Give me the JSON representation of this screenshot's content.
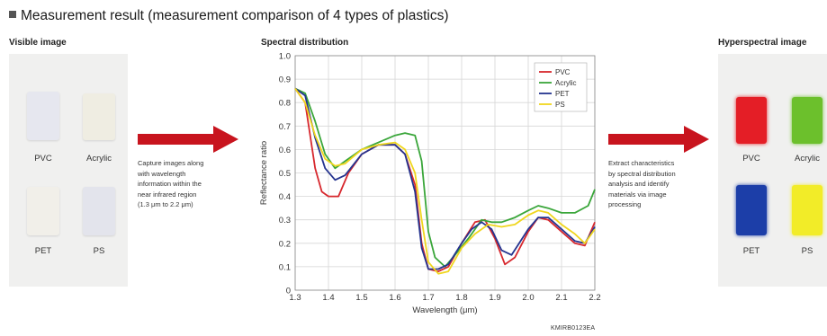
{
  "header": {
    "title": "Measurement result (measurement comparison of 4 types of plastics)"
  },
  "sections": {
    "visible": "Visible image",
    "spectral": "Spectral distribution",
    "hyperspectral": "Hyperspectral image"
  },
  "left_panel": {
    "labels": [
      "PVC",
      "Acrylic",
      "PET",
      "PS"
    ]
  },
  "right_panel": {
    "labels": [
      "PVC",
      "Acrylic",
      "PET",
      "PS"
    ],
    "colors": [
      "#e41e26",
      "#6cc02c",
      "#1c3ea8",
      "#f2ec28"
    ]
  },
  "steps": {
    "capture": [
      "Capture images along",
      "with wavelength",
      "information within the",
      "near infrared region",
      "(1.3 μm to 2.2 μm)"
    ],
    "extract": [
      "Extract characteristics",
      "by spectral distribution",
      "analysis and identify",
      "materials via image",
      "processing"
    ]
  },
  "figure_code": "KMIRB0123EA",
  "arrow_color": "#c8141e",
  "chart_data": {
    "type": "line",
    "title": "",
    "xlabel": "Wavelength (μm)",
    "ylabel": "Reflectance ratio",
    "xlim": [
      1.3,
      2.2
    ],
    "ylim": [
      0,
      1.0
    ],
    "xticks": [
      "1.3",
      "1.4",
      "1.5",
      "1.6",
      "1.7",
      "1.8",
      "1.9",
      "2.0",
      "2.1",
      "2.2"
    ],
    "yticks": [
      "0",
      "0.1",
      "0.2",
      "0.3",
      "0.4",
      "0.5",
      "0.6",
      "0.7",
      "0.8",
      "0.9",
      "1.0"
    ],
    "grid": true,
    "legend_position": "top-right",
    "series": [
      {
        "name": "PVC",
        "color": "#d7282e",
        "points": [
          [
            1.3,
            0.86
          ],
          [
            1.33,
            0.8
          ],
          [
            1.36,
            0.52
          ],
          [
            1.38,
            0.42
          ],
          [
            1.4,
            0.4
          ],
          [
            1.43,
            0.4
          ],
          [
            1.46,
            0.5
          ],
          [
            1.5,
            0.58
          ],
          [
            1.55,
            0.62
          ],
          [
            1.6,
            0.62
          ],
          [
            1.63,
            0.58
          ],
          [
            1.66,
            0.45
          ],
          [
            1.68,
            0.2
          ],
          [
            1.7,
            0.09
          ],
          [
            1.73,
            0.08
          ],
          [
            1.76,
            0.1
          ],
          [
            1.8,
            0.2
          ],
          [
            1.84,
            0.29
          ],
          [
            1.87,
            0.3
          ],
          [
            1.9,
            0.22
          ],
          [
            1.93,
            0.11
          ],
          [
            1.96,
            0.14
          ],
          [
            2.0,
            0.25
          ],
          [
            2.03,
            0.31
          ],
          [
            2.06,
            0.3
          ],
          [
            2.1,
            0.25
          ],
          [
            2.14,
            0.2
          ],
          [
            2.17,
            0.19
          ],
          [
            2.2,
            0.29
          ]
        ]
      },
      {
        "name": "Acrylic",
        "color": "#3aa63a",
        "points": [
          [
            1.3,
            0.86
          ],
          [
            1.33,
            0.84
          ],
          [
            1.36,
            0.72
          ],
          [
            1.39,
            0.58
          ],
          [
            1.42,
            0.52
          ],
          [
            1.45,
            0.55
          ],
          [
            1.5,
            0.6
          ],
          [
            1.55,
            0.63
          ],
          [
            1.6,
            0.66
          ],
          [
            1.63,
            0.67
          ],
          [
            1.66,
            0.66
          ],
          [
            1.68,
            0.55
          ],
          [
            1.7,
            0.25
          ],
          [
            1.72,
            0.14
          ],
          [
            1.75,
            0.1
          ],
          [
            1.78,
            0.15
          ],
          [
            1.82,
            0.22
          ],
          [
            1.86,
            0.3
          ],
          [
            1.89,
            0.29
          ],
          [
            1.92,
            0.29
          ],
          [
            1.96,
            0.31
          ],
          [
            2.0,
            0.34
          ],
          [
            2.03,
            0.36
          ],
          [
            2.06,
            0.35
          ],
          [
            2.1,
            0.33
          ],
          [
            2.14,
            0.33
          ],
          [
            2.18,
            0.36
          ],
          [
            2.2,
            0.43
          ]
        ]
      },
      {
        "name": "PET",
        "color": "#25348f",
        "points": [
          [
            1.3,
            0.86
          ],
          [
            1.33,
            0.83
          ],
          [
            1.36,
            0.65
          ],
          [
            1.39,
            0.52
          ],
          [
            1.42,
            0.47
          ],
          [
            1.45,
            0.49
          ],
          [
            1.5,
            0.58
          ],
          [
            1.55,
            0.62
          ],
          [
            1.6,
            0.62
          ],
          [
            1.63,
            0.58
          ],
          [
            1.66,
            0.42
          ],
          [
            1.68,
            0.18
          ],
          [
            1.7,
            0.09
          ],
          [
            1.73,
            0.09
          ],
          [
            1.76,
            0.11
          ],
          [
            1.8,
            0.2
          ],
          [
            1.83,
            0.26
          ],
          [
            1.86,
            0.29
          ],
          [
            1.89,
            0.26
          ],
          [
            1.92,
            0.17
          ],
          [
            1.95,
            0.15
          ],
          [
            2.0,
            0.26
          ],
          [
            2.03,
            0.31
          ],
          [
            2.06,
            0.31
          ],
          [
            2.1,
            0.26
          ],
          [
            2.14,
            0.21
          ],
          [
            2.17,
            0.2
          ],
          [
            2.2,
            0.27
          ]
        ]
      },
      {
        "name": "PS",
        "color": "#f0d61e",
        "points": [
          [
            1.3,
            0.86
          ],
          [
            1.33,
            0.8
          ],
          [
            1.36,
            0.66
          ],
          [
            1.39,
            0.56
          ],
          [
            1.42,
            0.53
          ],
          [
            1.45,
            0.54
          ],
          [
            1.5,
            0.6
          ],
          [
            1.55,
            0.62
          ],
          [
            1.6,
            0.63
          ],
          [
            1.63,
            0.6
          ],
          [
            1.66,
            0.5
          ],
          [
            1.68,
            0.3
          ],
          [
            1.7,
            0.12
          ],
          [
            1.73,
            0.07
          ],
          [
            1.76,
            0.08
          ],
          [
            1.8,
            0.18
          ],
          [
            1.84,
            0.24
          ],
          [
            1.88,
            0.28
          ],
          [
            1.92,
            0.27
          ],
          [
            1.96,
            0.28
          ],
          [
            2.0,
            0.32
          ],
          [
            2.03,
            0.34
          ],
          [
            2.06,
            0.33
          ],
          [
            2.1,
            0.28
          ],
          [
            2.14,
            0.24
          ],
          [
            2.17,
            0.2
          ],
          [
            2.2,
            0.26
          ]
        ]
      }
    ]
  }
}
